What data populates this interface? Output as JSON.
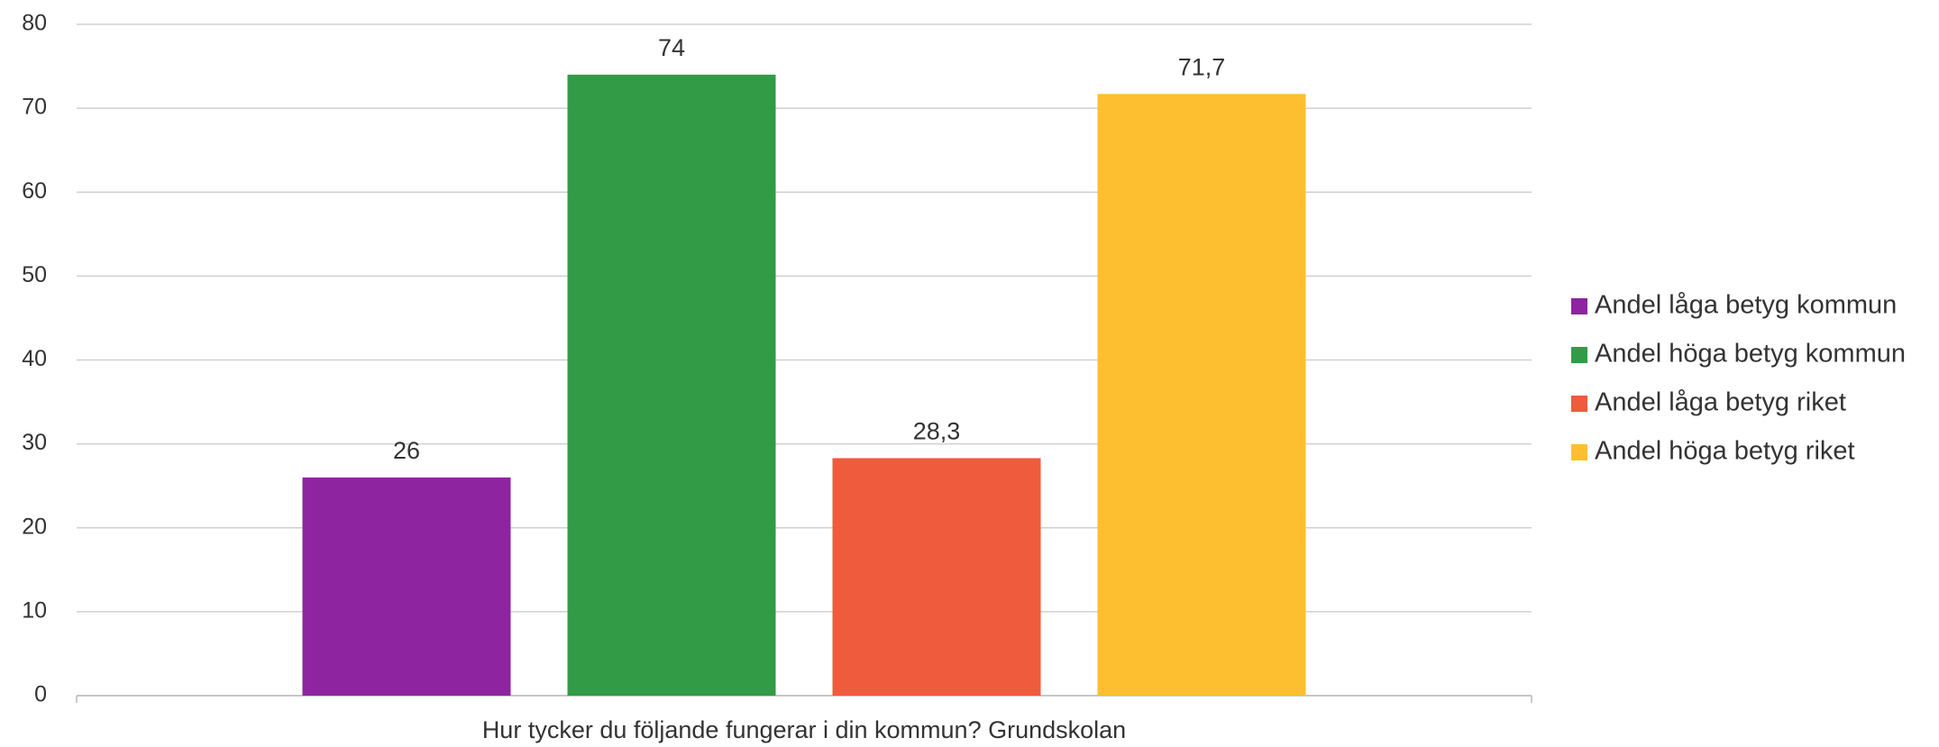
{
  "chart_data": {
    "type": "bar",
    "categories": [
      "Hur tycker du följande fungerar i din kommun? Grundskolan"
    ],
    "series": [
      {
        "name": "Andel låga betyg kommun",
        "color": "#8e24a0",
        "values": [
          26
        ],
        "value_labels": [
          "26"
        ]
      },
      {
        "name": "Andel höga betyg kommun",
        "color": "#329b46",
        "values": [
          74
        ],
        "value_labels": [
          "74"
        ]
      },
      {
        "name": "Andel låga betyg riket",
        "color": "#ee5b3d",
        "values": [
          28.3
        ],
        "value_labels": [
          "28,3"
        ]
      },
      {
        "name": "Andel höga betyg riket",
        "color": "#fdbf2f",
        "values": [
          71.7
        ],
        "value_labels": [
          "71,7"
        ]
      }
    ],
    "ylim": [
      0,
      80
    ],
    "yticks": [
      0,
      10,
      20,
      30,
      40,
      50,
      60,
      70,
      80
    ],
    "grid": true,
    "legend": "right"
  }
}
